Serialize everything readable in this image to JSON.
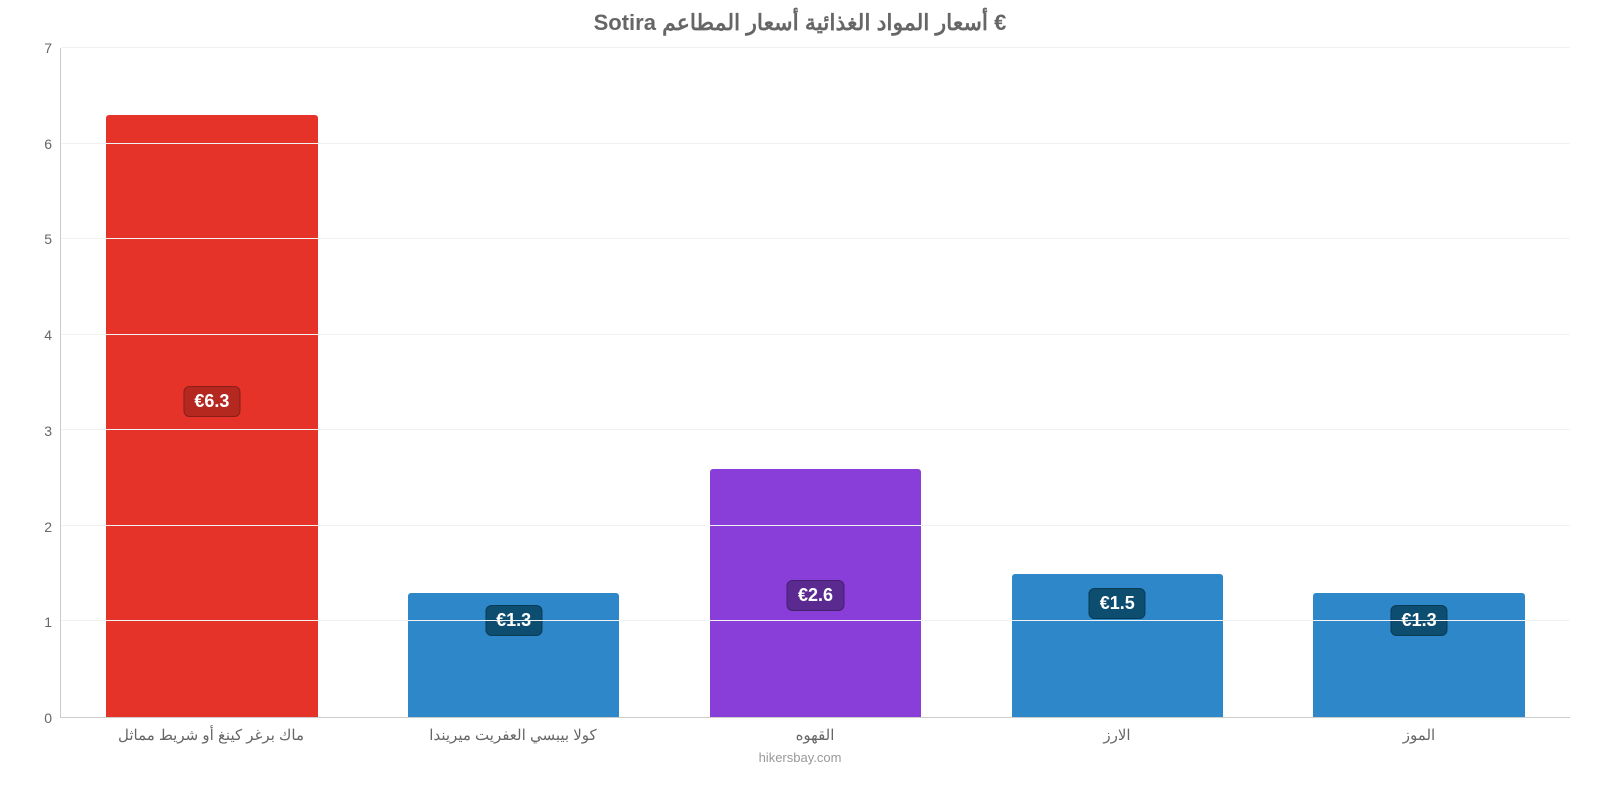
{
  "chart": {
    "type": "bar",
    "title": "Sotira أسعار المواد الغذائية أسعار المطاعم €",
    "title_color": "#666666",
    "title_fontsize": 22,
    "background_color": "#ffffff",
    "grid_color": "#f2f2f2",
    "axis_color": "#cccccc",
    "label_color": "#666666",
    "ylim": [
      0,
      7
    ],
    "yticks": [
      0,
      1,
      2,
      3,
      4,
      5,
      6,
      7
    ],
    "bar_width_pct": 70,
    "categories": [
      "ماك برغر كينغ أو شريط مماثل",
      "كولا بيبسي العفريت ميريندا",
      "القهوه",
      "الارز",
      "الموز"
    ],
    "values": [
      6.3,
      1.3,
      2.6,
      1.5,
      1.3
    ],
    "value_labels": [
      "€6.3",
      "€1.3",
      "€2.6",
      "€1.5",
      "€1.3"
    ],
    "bar_colors": [
      "#e6332a",
      "#2e87c8",
      "#8a3ed9",
      "#2e87c8",
      "#2e87c8"
    ],
    "badge_colors": [
      "#b52820",
      "#0d4e70",
      "#5b2a91",
      "#0d4e70",
      "#0d4e70"
    ],
    "footer": "hikersbay.com",
    "label_fontsize": 15
  }
}
